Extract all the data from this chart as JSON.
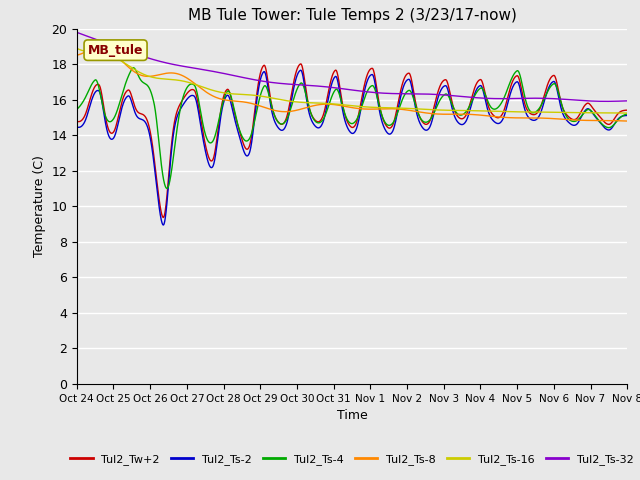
{
  "title": "MB Tule Tower: Tule Temps 2 (3/23/17-now)",
  "xlabel": "Time",
  "ylabel": "Temperature (C)",
  "ylim": [
    0,
    20
  ],
  "yticks": [
    0,
    2,
    4,
    6,
    8,
    10,
    12,
    14,
    16,
    18,
    20
  ],
  "x_labels": [
    "Oct 24",
    "Oct 25",
    "Oct 26",
    "Oct 27",
    "Oct 28",
    "Oct 29",
    "Oct 30",
    "Oct 31",
    "Nov 1",
    "Nov 2",
    "Nov 3",
    "Nov 4",
    "Nov 5",
    "Nov 6",
    "Nov 7",
    "Nov 8"
  ],
  "legend_labels": [
    "Tul2_Tw+2",
    "Tul2_Ts-2",
    "Tul2_Ts-4",
    "Tul2_Ts-8",
    "Tul2_Ts-16",
    "Tul2_Ts-32"
  ],
  "legend_colors": [
    "#cc0000",
    "#0000cc",
    "#00aa00",
    "#ff8800",
    "#cccc00",
    "#8800cc"
  ],
  "bg_color": "#e8e8e8",
  "annotation_text": "MB_tule",
  "annotation_color": "#880000",
  "annotation_bg": "#ffffcc"
}
